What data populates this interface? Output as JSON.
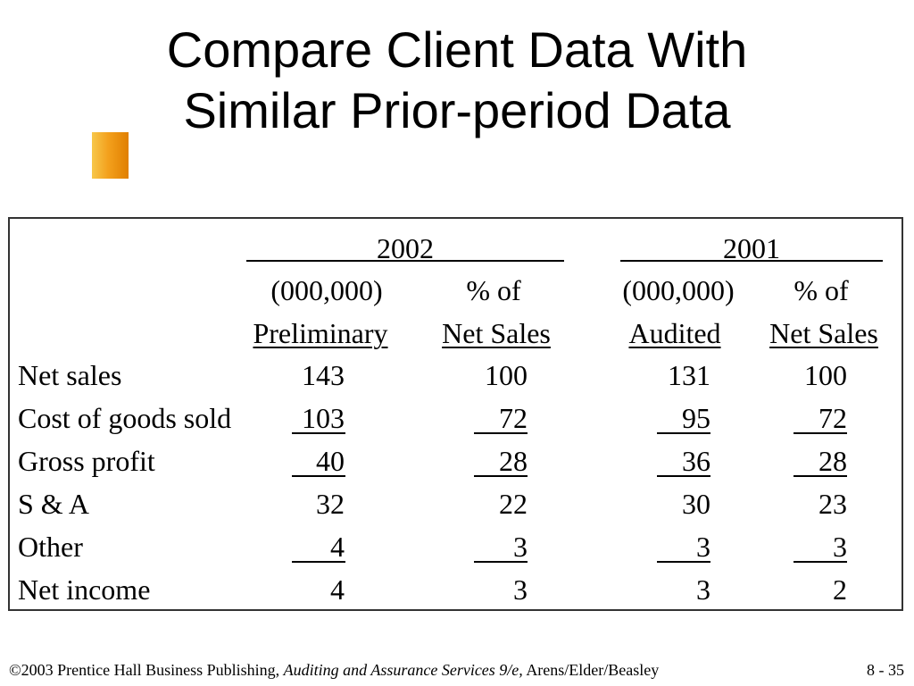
{
  "slide": {
    "title_line1": "Compare Client Data With",
    "title_line2": "Similar Prior-period Data",
    "accent_color": "#f3a01c"
  },
  "table": {
    "year_2002": "2002",
    "year_2001": "2001",
    "col_2002_amount_unit": "(000,000)",
    "col_2002_pct_label": "% of",
    "col_2001_amount_unit": "(000,000)",
    "col_2001_pct_label": "% of",
    "col_2002_amount_status": "Preliminary",
    "col_2002_pct_base": "Net Sales",
    "col_2001_amount_status": "Audited",
    "col_2001_pct_base": "Net Sales",
    "rows": [
      {
        "label": "Net sales",
        "v2002": "143",
        "p2002": "100",
        "v2001": "131",
        "p2001": "100"
      },
      {
        "label": "Cost of goods sold",
        "v2002": "103",
        "p2002": "72",
        "v2001": "95",
        "p2001": "72"
      },
      {
        "label": "Gross profit",
        "v2002": "40",
        "p2002": "28",
        "v2001": "36",
        "p2001": "28"
      },
      {
        "label": "S & A",
        "v2002": "32",
        "p2002": "22",
        "v2001": "30",
        "p2001": "23"
      },
      {
        "label": "Other",
        "v2002": "4",
        "p2002": "3",
        "v2001": "3",
        "p2001": "3"
      },
      {
        "label": "Net income",
        "v2002": "4",
        "p2002": "3",
        "v2001": "3",
        "p2001": "2"
      }
    ]
  },
  "footer": {
    "copyright": "©2003 Prentice Hall Business Publishing,",
    "book_title": "Auditing and Assurance Services 9/e,",
    "authors": "Arens/Elder/Beasley",
    "page_number": "8 - 35"
  }
}
